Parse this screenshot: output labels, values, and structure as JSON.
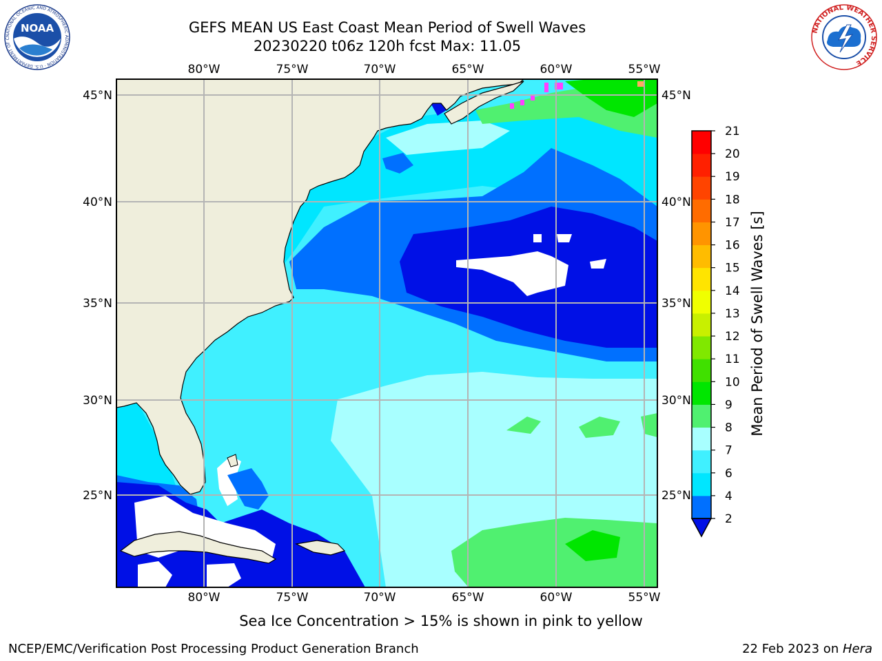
{
  "title": {
    "line1": "GEFS MEAN US East Coast Mean Period of Swell Waves",
    "line2": "20230220 t06z 120h fcst   Max: 11.05"
  },
  "map": {
    "lon_labels": [
      "80°W",
      "75°W",
      "70°W",
      "65°W",
      "60°W",
      "55°W"
    ],
    "lat_labels": [
      "45°N",
      "40°N",
      "35°N",
      "30°N",
      "25°N"
    ],
    "gridlines": true
  },
  "colorbar": {
    "label": "Mean Period of Swell Waves [s]",
    "ticks": [
      "2",
      "4",
      "6",
      "7",
      "8",
      "9",
      "10",
      "11",
      "12",
      "13",
      "14",
      "15",
      "16",
      "17",
      "18",
      "19",
      "20",
      "21"
    ],
    "colors": [
      "#0070ff",
      "#00e6ff",
      "#40f0ff",
      "#a8ffff",
      "#50f070",
      "#00e600",
      "#40e000",
      "#80e800",
      "#c8f000",
      "#f0ff00",
      "#ffe400",
      "#ffbc00",
      "#ff9400",
      "#ff6c00",
      "#ff4400",
      "#ff2000",
      "#ff0000"
    ],
    "under_color": "#0010e6"
  },
  "colors": {
    "land": "#efeedc",
    "no_data": "#ffffff",
    "deep_blue": "#0010e6",
    "blue": "#0070ff",
    "cyan": "#00e6ff",
    "light_cyan": "#40f0ff",
    "pale_cyan": "#a8ffff",
    "green": "#50f070",
    "bright_green": "#00e600",
    "sea_ice": "#ff40ff",
    "grid": "#b4b4b4"
  },
  "note": "Sea Ice Concentration > 15% is shown in pink to yellow",
  "footer": {
    "left": "NCEP/EMC/Verification Post Processing Product Generation Branch",
    "right_prefix": "22 Feb 2023 on ",
    "right_host": "Hera"
  },
  "logos": {
    "noaa_text": "NOAA",
    "noaa_ring_text": "NATIONAL OCEANIC AND ATMOSPHERIC ADMINISTRATION · U.S. DEPARTMENT OF COMMERCE",
    "nws_ring_text": "NATIONAL WEATHER SERVICE"
  }
}
